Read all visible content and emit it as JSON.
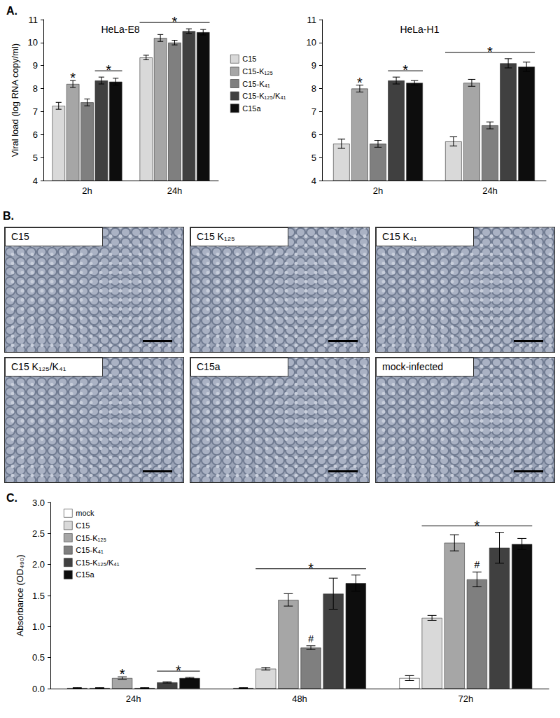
{
  "panel_labels": [
    "A.",
    "B.",
    "C."
  ],
  "chart_data": [
    {
      "type": "bar",
      "title": "HeLa-E8",
      "ylabel": "Viral load (log RNA copy/ml)",
      "categories": [
        "2h",
        "24h"
      ],
      "ylim": [
        4,
        11
      ],
      "yticks": [
        4,
        5,
        6,
        7,
        8,
        9,
        10,
        11
      ],
      "grid": false,
      "legend": "right",
      "series": [
        {
          "name": "C15",
          "color": "#d9d9d9",
          "values": [
            7.25,
            9.35
          ],
          "errors": [
            0.15,
            0.1
          ]
        },
        {
          "name": "C15-K₁₂₅",
          "color": "#a6a6a6",
          "values": [
            8.2,
            10.2
          ],
          "errors": [
            0.15,
            0.15
          ]
        },
        {
          "name": "C15-K₄₁",
          "color": "#7f7f7f",
          "values": [
            7.4,
            10.0
          ],
          "errors": [
            0.15,
            0.1
          ]
        },
        {
          "name": "C15-K₁₂₅/K₄₁",
          "color": "#404040",
          "values": [
            8.35,
            10.5
          ],
          "errors": [
            0.15,
            0.1
          ]
        },
        {
          "name": "C15a",
          "color": "#0d0d0d",
          "values": [
            8.3,
            10.45
          ],
          "errors": [
            0.15,
            0.12
          ]
        }
      ],
      "annotations": [
        {
          "category": "2h",
          "series": [
            "C15-K₁₂₅"
          ],
          "label": "*"
        },
        {
          "category": "2h",
          "series": [
            "C15-K₁₂₅/K₄₁",
            "C15a"
          ],
          "label": "*"
        },
        {
          "category": "24h",
          "series": [
            "C15",
            "C15a"
          ],
          "label": "*"
        }
      ]
    },
    {
      "type": "bar",
      "title": "HeLa-H1",
      "categories": [
        "2h",
        "24h"
      ],
      "ylim": [
        4,
        11
      ],
      "yticks": [
        4,
        5,
        6,
        7,
        8,
        9,
        10,
        11
      ],
      "grid": false,
      "series": [
        {
          "name": "C15",
          "color": "#d9d9d9",
          "values": [
            5.6,
            5.7
          ],
          "errors": [
            0.2,
            0.2
          ]
        },
        {
          "name": "C15-K₁₂₅",
          "color": "#a6a6a6",
          "values": [
            8.0,
            8.25
          ],
          "errors": [
            0.15,
            0.15
          ]
        },
        {
          "name": "C15-K₄₁",
          "color": "#7f7f7f",
          "values": [
            5.6,
            6.4
          ],
          "errors": [
            0.15,
            0.15
          ]
        },
        {
          "name": "C15-K₁₂₅/K₄₁",
          "color": "#404040",
          "values": [
            8.35,
            9.1
          ],
          "errors": [
            0.15,
            0.2
          ]
        },
        {
          "name": "C15a",
          "color": "#0d0d0d",
          "values": [
            8.25,
            8.95
          ],
          "errors": [
            0.1,
            0.2
          ]
        }
      ],
      "annotations": [
        {
          "category": "2h",
          "series": [
            "C15-K₁₂₅"
          ],
          "label": "*"
        },
        {
          "category": "2h",
          "series": [
            "C15-K₁₂₅/K₄₁",
            "C15a"
          ],
          "label": "*"
        },
        {
          "category": "24h",
          "series": [
            "C15",
            "C15a"
          ],
          "label": "*"
        }
      ]
    },
    {
      "type": "bar",
      "ylabel": "Absorbance (OD₄₉₀)",
      "categories": [
        "24h",
        "48h",
        "72h"
      ],
      "ylim": [
        0,
        3
      ],
      "yticks": [
        {
          "value": 0,
          "label": "0.0"
        },
        0.5,
        {
          "value": 1,
          "label": "1.0"
        },
        1.5,
        {
          "value": 2,
          "label": "2.0"
        },
        2.5,
        {
          "value": 3,
          "label": "3.0"
        }
      ],
      "grid": false,
      "legend": "upper left",
      "series": [
        {
          "name": "mock",
          "color": "#ffffff",
          "values": [
            0.01,
            0.01,
            0.17
          ],
          "errors": [
            0.005,
            0.005,
            0.04
          ]
        },
        {
          "name": "C15",
          "color": "#d9d9d9",
          "values": [
            0.01,
            0.32,
            1.14
          ],
          "errors": [
            0.005,
            0.02,
            0.04
          ]
        },
        {
          "name": "C15-K₁₂₅",
          "color": "#a6a6a6",
          "values": [
            0.17,
            1.43,
            2.35
          ],
          "errors": [
            0.02,
            0.1,
            0.13
          ]
        },
        {
          "name": "C15-K₄₁",
          "color": "#7f7f7f",
          "values": [
            0.01,
            0.66,
            1.76
          ],
          "errors": [
            0.005,
            0.03,
            0.12
          ]
        },
        {
          "name": "C15-K₁₂₅/K₄₁",
          "color": "#404040",
          "values": [
            0.1,
            1.53,
            2.27
          ],
          "errors": [
            0.01,
            0.25,
            0.25
          ]
        },
        {
          "name": "C15a",
          "color": "#0d0d0d",
          "values": [
            0.17,
            1.7,
            2.33
          ],
          "errors": [
            0.01,
            0.13,
            0.09
          ]
        }
      ],
      "annotations": [
        {
          "category": "24h",
          "series": [
            "C15-K₁₂₅"
          ],
          "label": "*"
        },
        {
          "category": "24h",
          "series": [
            "C15-K₁₂₅/K₄₁",
            "C15a"
          ],
          "label": "*"
        },
        {
          "category": "48h",
          "series": [
            "C15",
            "C15a"
          ],
          "label": "*"
        },
        {
          "category": "48h",
          "series": [
            "C15-K₄₁"
          ],
          "label": "#"
        },
        {
          "category": "72h",
          "series": [
            "C15",
            "C15a"
          ],
          "label": "*"
        },
        {
          "category": "72h",
          "series": [
            "C15-K₄₁"
          ],
          "label": "#"
        }
      ]
    }
  ],
  "images": {
    "labels": [
      "C15",
      "C15 K₁₂₅",
      "C15 K₄₁",
      "C15 K₁₂₅/K₄₁",
      "C15a",
      "mock-infected"
    ]
  }
}
